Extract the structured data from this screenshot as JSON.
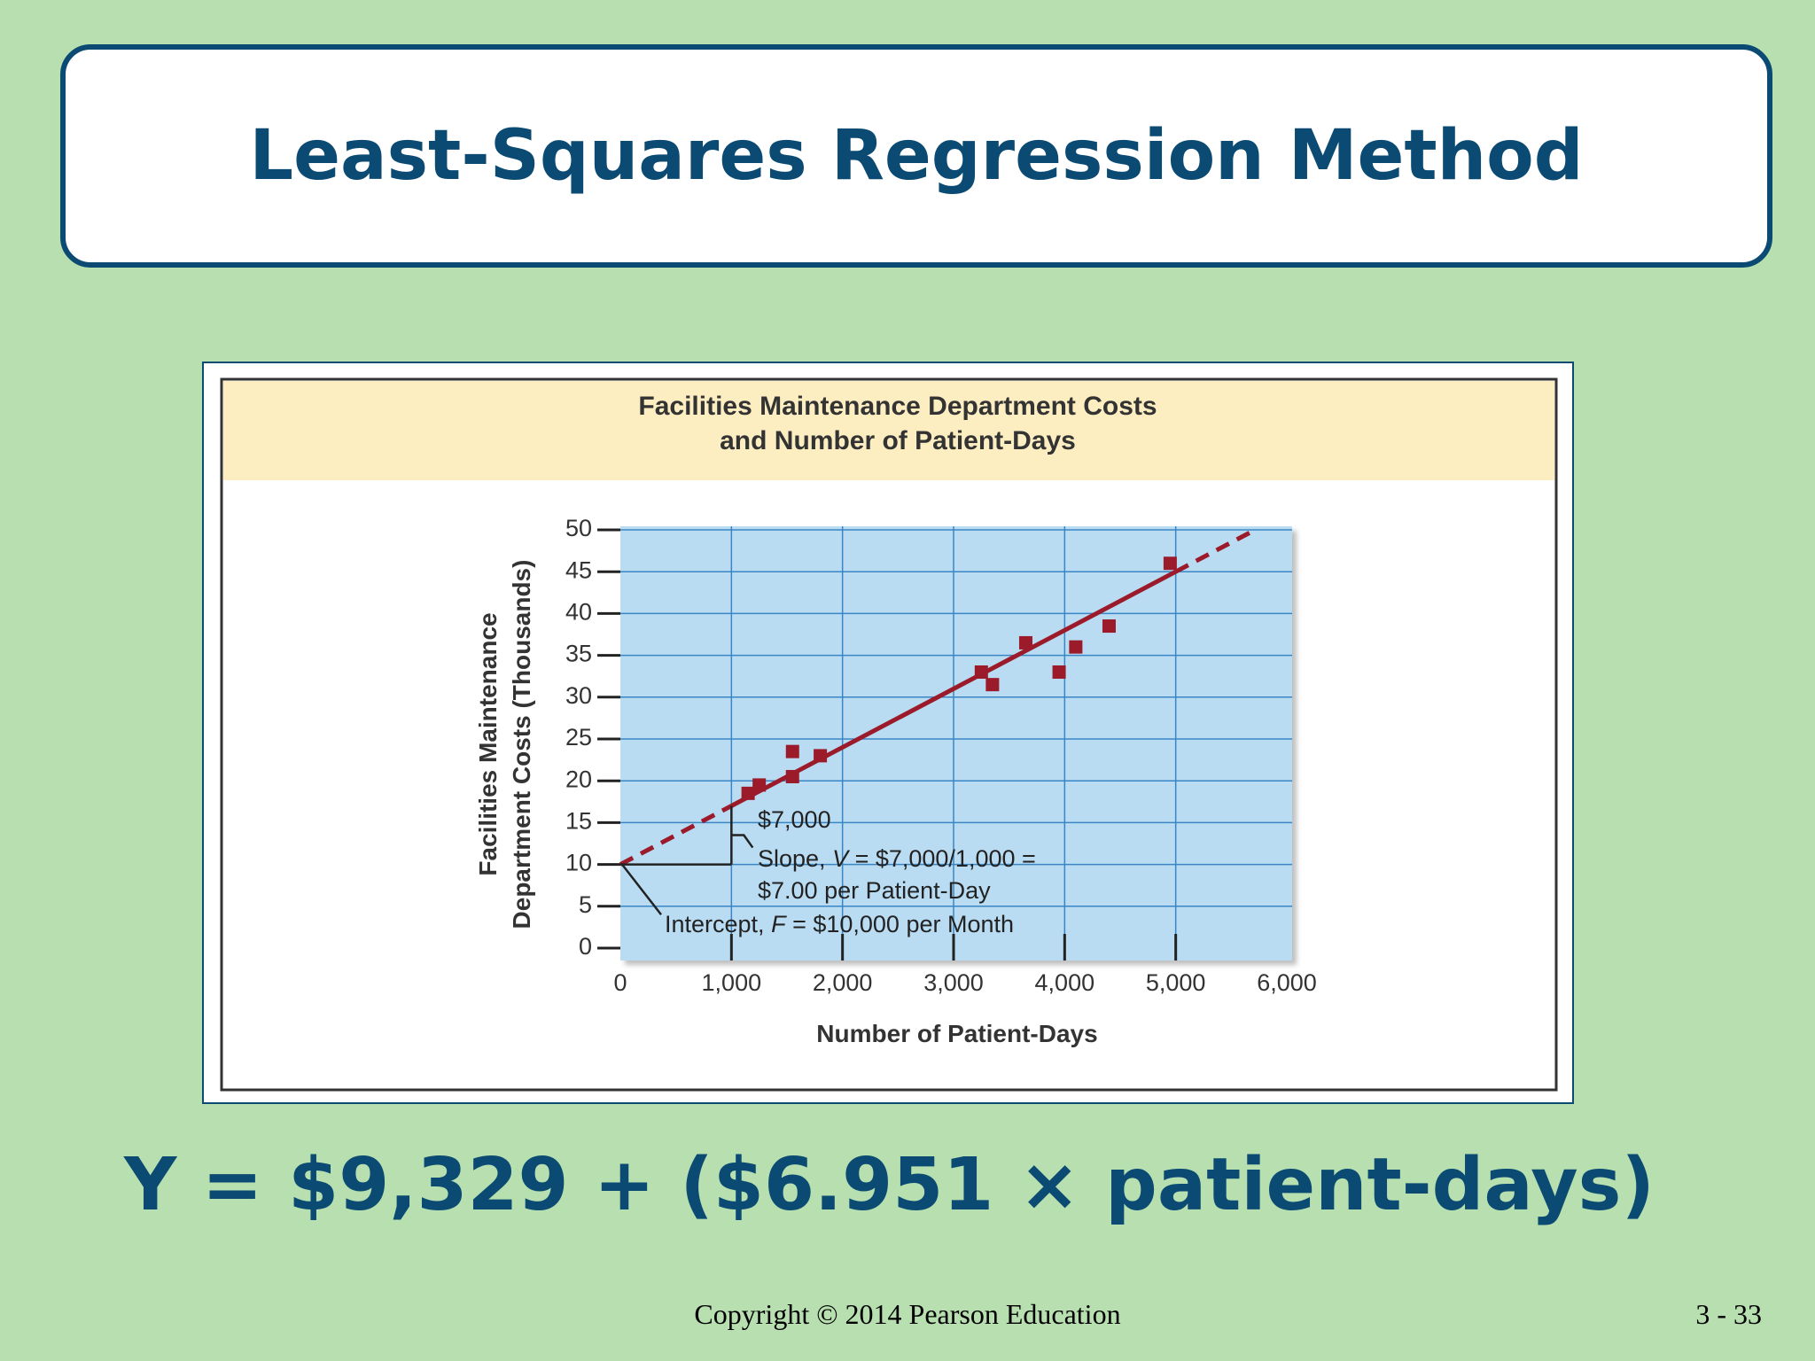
{
  "slide": {
    "title": "Least-Squares Regression Method",
    "equation": "Y = $9,329 + ($6.951 × patient-days)",
    "copyright": "Copyright © 2014 Pearson Education",
    "page_number": "3 - 33"
  },
  "colors": {
    "background": "#b7dfb0",
    "title_navy": "#0b4a72",
    "plot_fill": "#b9dcf3",
    "header_band": "#fdeec2",
    "marker_red": "#9b1b2a"
  },
  "chart_data": {
    "type": "scatter",
    "title_line1": "Facilities Maintenance Department Costs",
    "title_line2": "and Number of Patient-Days",
    "xlabel": "Number of Patient-Days",
    "ylabel_line1": "Facilities Maintenance",
    "ylabel_line2": "Department Costs (Thousands)",
    "xlim": [
      0,
      6000
    ],
    "ylim": [
      0,
      50
    ],
    "xticks": [
      0,
      1000,
      2000,
      3000,
      4000,
      5000,
      6000
    ],
    "xtick_labels": [
      "0",
      "1,000",
      "2,000",
      "3,000",
      "4,000",
      "5,000",
      "6,000"
    ],
    "yticks": [
      0,
      5,
      10,
      15,
      20,
      25,
      30,
      35,
      40,
      45,
      50
    ],
    "ytick_labels": [
      "0",
      "5",
      "10",
      "15",
      "20",
      "25",
      "30",
      "35",
      "40",
      "45",
      "50"
    ],
    "grid": true,
    "points": [
      {
        "x": 1150,
        "y": 18.5
      },
      {
        "x": 1250,
        "y": 19.5
      },
      {
        "x": 1550,
        "y": 23.5
      },
      {
        "x": 1550,
        "y": 20.5
      },
      {
        "x": 1800,
        "y": 23.0
      },
      {
        "x": 3250,
        "y": 33.0
      },
      {
        "x": 3350,
        "y": 31.5
      },
      {
        "x": 3650,
        "y": 36.5
      },
      {
        "x": 3950,
        "y": 33.0
      },
      {
        "x": 4100,
        "y": 36.0
      },
      {
        "x": 4400,
        "y": 38.5
      },
      {
        "x": 4950,
        "y": 46.0
      }
    ],
    "fit_line": {
      "intercept": 10,
      "slope": 0.007,
      "solid_from_x": 1000,
      "solid_to_x": 5000,
      "dashed_to_x": 5700
    },
    "annotations": {
      "rise_label": "$7,000",
      "slope_line1_prefix": "Slope, ",
      "slope_line1_var": "V",
      "slope_line1_suffix": " = $7,000/1,000 =",
      "slope_line2": "$7.00 per Patient-Day",
      "intercept_prefix": "Intercept, ",
      "intercept_var": "F",
      "intercept_suffix": " = $10,000 per Month"
    }
  }
}
